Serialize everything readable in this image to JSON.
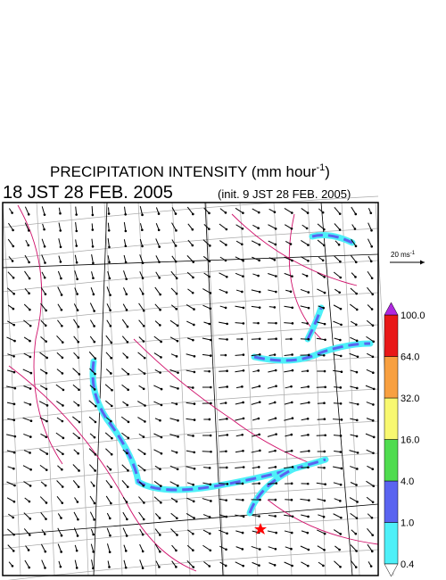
{
  "header": {
    "title": {
      "text": "PRECIPITATION INTENSITY (mm hour",
      "superscript": "-1",
      "close": ")"
    },
    "valid_time": "18 JST 28 FEB. 2005",
    "init_time": "(init. 9 JST 28 FEB. 2005)"
  },
  "wind_scale": {
    "text": "20 ms",
    "superscript": "-1"
  },
  "colorbar": {
    "levels": [
      0.4,
      {
        "value": 1.0,
        "label": "1.0"
      },
      {
        "value": 4.0,
        "label": "4.0"
      },
      {
        "value": 16.0,
        "label": "16.0"
      },
      {
        "value": 32.0,
        "label": "32.0"
      },
      {
        "value": 64.0,
        "label": "64.0"
      },
      {
        "value": 100.0,
        "label": "100.0"
      }
    ],
    "colors": [
      "#4ef0f8",
      "#5a64f0",
      "#50dc50",
      "#f8f870",
      "#f8a040",
      "#e81818"
    ],
    "under_color": "#ffffff",
    "over_color": "#b028e0"
  }
}
